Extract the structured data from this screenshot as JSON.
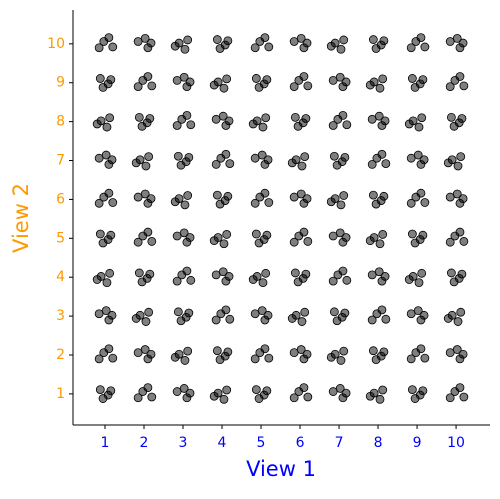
{
  "chart_data": {
    "type": "scatter",
    "xlabel": "View 1",
    "ylabel": "View 2",
    "xlim": [
      0.18,
      10.87
    ],
    "ylim": [
      0.2,
      10.87
    ],
    "xticks": [
      1,
      2,
      3,
      4,
      5,
      6,
      7,
      8,
      9,
      10
    ],
    "yticks": [
      1,
      2,
      3,
      4,
      5,
      6,
      7,
      8,
      9,
      10
    ],
    "xlabel_color": "#0000ff",
    "ylabel_color": "#ff9900",
    "color": "#000000",
    "x": [
      0.95,
      1.15,
      0.88,
      1.08,
      1.2,
      0.97,
      0.85,
      1.1,
      0.85,
      1.1,
      1.03,
      1.18,
      1.12,
      0.9,
      1.05,
      0.8,
      0.95,
      1.15,
      0.88,
      1.08,
      1.2,
      0.97,
      0.85,
      1.1,
      0.85,
      1.1,
      1.03,
      1.18,
      1.12,
      0.9,
      1.05,
      0.8,
      0.95,
      1.15,
      0.88,
      1.08,
      1.2,
      0.97,
      0.85,
      1.1,
      2.2,
      1.97,
      1.85,
      2.1,
      1.85,
      2.1,
      2.03,
      2.18,
      2.12,
      1.9,
      2.05,
      1.8,
      1.95,
      2.15,
      1.88,
      2.08,
      2.2,
      1.97,
      1.85,
      2.1,
      1.85,
      2.1,
      2.03,
      2.18,
      2.12,
      1.9,
      2.05,
      1.8,
      1.95,
      2.15,
      1.88,
      2.08,
      2.2,
      1.97,
      1.85,
      2.1,
      1.85,
      2.1,
      2.03,
      2.18,
      2.85,
      3.1,
      3.03,
      3.18,
      3.12,
      2.9,
      3.05,
      2.8,
      2.95,
      3.15,
      2.88,
      3.08,
      3.2,
      2.97,
      2.85,
      3.1,
      2.85,
      3.1,
      3.03,
      3.18,
      3.12,
      2.9,
      3.05,
      2.8,
      2.95,
      3.15,
      2.88,
      3.08,
      3.2,
      2.97,
      2.85,
      3.1,
      2.85,
      3.1,
      3.03,
      3.18,
      3.12,
      2.9,
      3.05,
      2.8,
      4.12,
      3.9,
      4.05,
      3.8,
      3.95,
      4.15,
      3.88,
      4.08,
      4.2,
      3.97,
      3.85,
      4.1,
      3.85,
      4.1,
      4.03,
      4.18,
      4.12,
      3.9,
      4.05,
      3.8,
      3.95,
      4.15,
      3.88,
      4.08,
      4.2,
      3.97,
      3.85,
      4.1,
      3.85,
      4.1,
      4.03,
      4.18,
      4.12,
      3.9,
      4.05,
      3.8,
      3.95,
      4.15,
      3.88,
      4.08,
      4.95,
      5.15,
      4.88,
      5.08,
      5.2,
      4.97,
      4.85,
      5.1,
      4.85,
      5.1,
      5.03,
      5.18,
      5.12,
      4.9,
      5.05,
      4.8,
      4.95,
      5.15,
      4.88,
      5.08,
      5.2,
      4.97,
      4.85,
      5.1,
      4.85,
      5.1,
      5.03,
      5.18,
      5.12,
      4.9,
      5.05,
      4.8,
      4.95,
      5.15,
      4.88,
      5.08,
      5.2,
      4.97,
      4.85,
      5.1,
      6.2,
      5.97,
      5.85,
      6.1,
      5.85,
      6.1,
      6.03,
      6.18,
      6.12,
      5.9,
      6.05,
      5.8,
      5.95,
      6.15,
      5.88,
      6.08,
      6.2,
      5.97,
      5.85,
      6.1,
      5.85,
      6.1,
      6.03,
      6.18,
      6.12,
      5.9,
      6.05,
      5.8,
      5.95,
      6.15,
      5.88,
      6.08,
      6.2,
      5.97,
      5.85,
      6.1,
      5.85,
      6.1,
      6.03,
      6.18,
      6.85,
      7.1,
      7.03,
      7.18,
      7.12,
      6.9,
      7.05,
      6.8,
      6.95,
      7.15,
      6.88,
      7.08,
      7.2,
      6.97,
      6.85,
      7.1,
      6.85,
      7.1,
      7.03,
      7.18,
      7.12,
      6.9,
      7.05,
      6.8,
      6.95,
      7.15,
      6.88,
      7.08,
      7.2,
      6.97,
      6.85,
      7.1,
      6.85,
      7.1,
      7.03,
      7.18,
      7.12,
      6.9,
      7.05,
      6.8,
      8.12,
      7.9,
      8.05,
      7.8,
      7.95,
      8.15,
      7.88,
      8.08,
      8.2,
      7.97,
      7.85,
      8.1,
      7.85,
      8.1,
      8.03,
      8.18,
      8.12,
      7.9,
      8.05,
      7.8,
      7.95,
      8.15,
      7.88,
      8.08,
      8.2,
      7.97,
      7.85,
      8.1,
      7.85,
      8.1,
      8.03,
      8.18,
      8.12,
      7.9,
      8.05,
      7.8,
      7.95,
      8.15,
      7.88,
      8.08,
      8.95,
      9.15,
      8.88,
      9.08,
      9.2,
      8.97,
      8.85,
      9.1,
      8.85,
      9.1,
      9.03,
      9.18,
      9.12,
      8.9,
      9.05,
      8.8,
      8.95,
      9.15,
      8.88,
      9.08,
      9.2,
      8.97,
      8.85,
      9.1,
      8.85,
      9.1,
      9.03,
      9.18,
      9.12,
      8.9,
      9.05,
      8.8,
      8.95,
      9.15,
      8.88,
      9.08,
      9.2,
      8.97,
      8.85,
      9.1,
      10.2,
      9.97,
      9.85,
      10.1,
      9.85,
      10.1,
      10.03,
      10.18,
      10.12,
      9.9,
      10.05,
      9.8,
      9.95,
      10.15,
      9.88,
      10.08,
      10.2,
      9.97,
      9.85,
      10.1,
      9.85,
      10.1,
      10.03,
      10.18,
      10.12,
      9.9,
      10.05,
      9.8,
      9.95,
      10.15,
      9.88,
      10.08,
      10.2,
      9.97,
      9.85,
      10.1,
      9.85,
      10.1,
      10.03,
      10.18
    ],
    "values": [
      0.88,
      1.08,
      1.11,
      0.97,
      1.92,
      2.06,
      1.9,
      2.16,
      3.06,
      2.9,
      3.14,
      3.02,
      4.1,
      4.02,
      3.86,
      3.94,
      4.88,
      5.08,
      5.11,
      4.97,
      5.92,
      6.06,
      5.9,
      6.16,
      7.06,
      6.9,
      7.14,
      7.02,
      8.1,
      8.02,
      7.86,
      7.94,
      8.88,
      9.08,
      9.11,
      8.97,
      9.92,
      10.06,
      9.9,
      10.16,
      0.92,
      1.06,
      0.9,
      1.16,
      2.06,
      1.9,
      2.14,
      2.02,
      3.1,
      3.02,
      2.86,
      2.94,
      3.88,
      4.08,
      4.11,
      3.97,
      4.92,
      5.06,
      4.9,
      5.16,
      6.06,
      5.9,
      6.14,
      6.02,
      7.1,
      7.02,
      6.86,
      6.94,
      7.88,
      8.08,
      8.11,
      7.97,
      8.92,
      9.06,
      8.9,
      9.16,
      10.06,
      9.9,
      10.14,
      10.02,
      1.06,
      0.9,
      1.14,
      1.02,
      2.1,
      2.02,
      1.86,
      1.94,
      2.88,
      3.08,
      3.11,
      2.97,
      3.92,
      4.06,
      3.9,
      4.16,
      5.06,
      4.9,
      5.14,
      5.02,
      6.1,
      6.02,
      5.86,
      5.94,
      6.88,
      7.08,
      7.11,
      6.97,
      7.92,
      8.06,
      7.9,
      8.16,
      9.06,
      8.9,
      9.14,
      9.02,
      10.1,
      10.02,
      9.86,
      9.94,
      1.1,
      1.02,
      0.86,
      0.94,
      1.88,
      2.08,
      2.11,
      1.97,
      2.92,
      3.06,
      2.9,
      3.16,
      4.06,
      3.9,
      4.14,
      4.02,
      5.1,
      5.02,
      4.86,
      4.94,
      5.88,
      6.08,
      6.11,
      5.97,
      6.92,
      7.06,
      6.9,
      7.16,
      8.06,
      7.9,
      8.14,
      8.02,
      9.1,
      9.02,
      8.86,
      8.94,
      9.88,
      10.08,
      10.11,
      9.97,
      0.88,
      1.08,
      1.11,
      0.97,
      1.92,
      2.06,
      1.9,
      2.16,
      3.06,
      2.9,
      3.14,
      3.02,
      4.1,
      4.02,
      3.86,
      3.94,
      4.88,
      5.08,
      5.11,
      4.97,
      5.92,
      6.06,
      5.9,
      6.16,
      7.06,
      6.9,
      7.14,
      7.02,
      8.1,
      8.02,
      7.86,
      7.94,
      8.88,
      9.08,
      9.11,
      8.97,
      9.92,
      10.06,
      9.9,
      10.16,
      0.92,
      1.06,
      0.9,
      1.16,
      2.06,
      1.9,
      2.14,
      2.02,
      3.1,
      3.02,
      2.86,
      2.94,
      3.88,
      4.08,
      4.11,
      3.97,
      4.92,
      5.06,
      4.9,
      5.16,
      6.06,
      5.9,
      6.14,
      6.02,
      7.1,
      7.02,
      6.86,
      6.94,
      7.88,
      8.08,
      8.11,
      7.97,
      8.92,
      9.06,
      8.9,
      9.16,
      10.06,
      9.9,
      10.14,
      10.02,
      1.06,
      0.9,
      1.14,
      1.02,
      2.1,
      2.02,
      1.86,
      1.94,
      2.88,
      3.08,
      3.11,
      2.97,
      3.92,
      4.06,
      3.9,
      4.16,
      5.06,
      4.9,
      5.14,
      5.02,
      6.1,
      6.02,
      5.86,
      5.94,
      6.88,
      7.08,
      7.11,
      6.97,
      7.92,
      8.06,
      7.9,
      8.16,
      9.06,
      8.9,
      9.14,
      9.02,
      10.1,
      10.02,
      9.86,
      9.94,
      1.1,
      1.02,
      0.86,
      0.94,
      1.88,
      2.08,
      2.11,
      1.97,
      2.92,
      3.06,
      2.9,
      3.16,
      4.06,
      3.9,
      4.14,
      4.02,
      5.1,
      5.02,
      4.86,
      4.94,
      5.88,
      6.08,
      6.11,
      5.97,
      6.92,
      7.06,
      6.9,
      7.16,
      8.06,
      7.9,
      8.14,
      8.02,
      9.1,
      9.02,
      8.86,
      8.94,
      9.88,
      10.08,
      10.11,
      9.97,
      0.88,
      1.08,
      1.11,
      0.97,
      1.92,
      2.06,
      1.9,
      2.16,
      3.06,
      2.9,
      3.14,
      3.02,
      4.1,
      4.02,
      3.86,
      3.94,
      4.88,
      5.08,
      5.11,
      4.97,
      5.92,
      6.06,
      5.9,
      6.16,
      7.06,
      6.9,
      7.14,
      7.02,
      8.1,
      8.02,
      7.86,
      7.94,
      8.88,
      9.08,
      9.11,
      8.97,
      9.92,
      10.06,
      9.9,
      10.16,
      0.92,
      1.06,
      0.9,
      1.16,
      2.06,
      1.9,
      2.14,
      2.02,
      3.1,
      3.02,
      2.86,
      2.94,
      3.88,
      4.08,
      4.11,
      3.97,
      4.92,
      5.06,
      4.9,
      5.16,
      6.06,
      5.9,
      6.14,
      6.02,
      7.1,
      7.02,
      6.86,
      6.94,
      7.88,
      8.08,
      8.11,
      7.97,
      8.92,
      9.06,
      8.9,
      9.16,
      10.06,
      9.9,
      10.14,
      10.02
    ]
  }
}
